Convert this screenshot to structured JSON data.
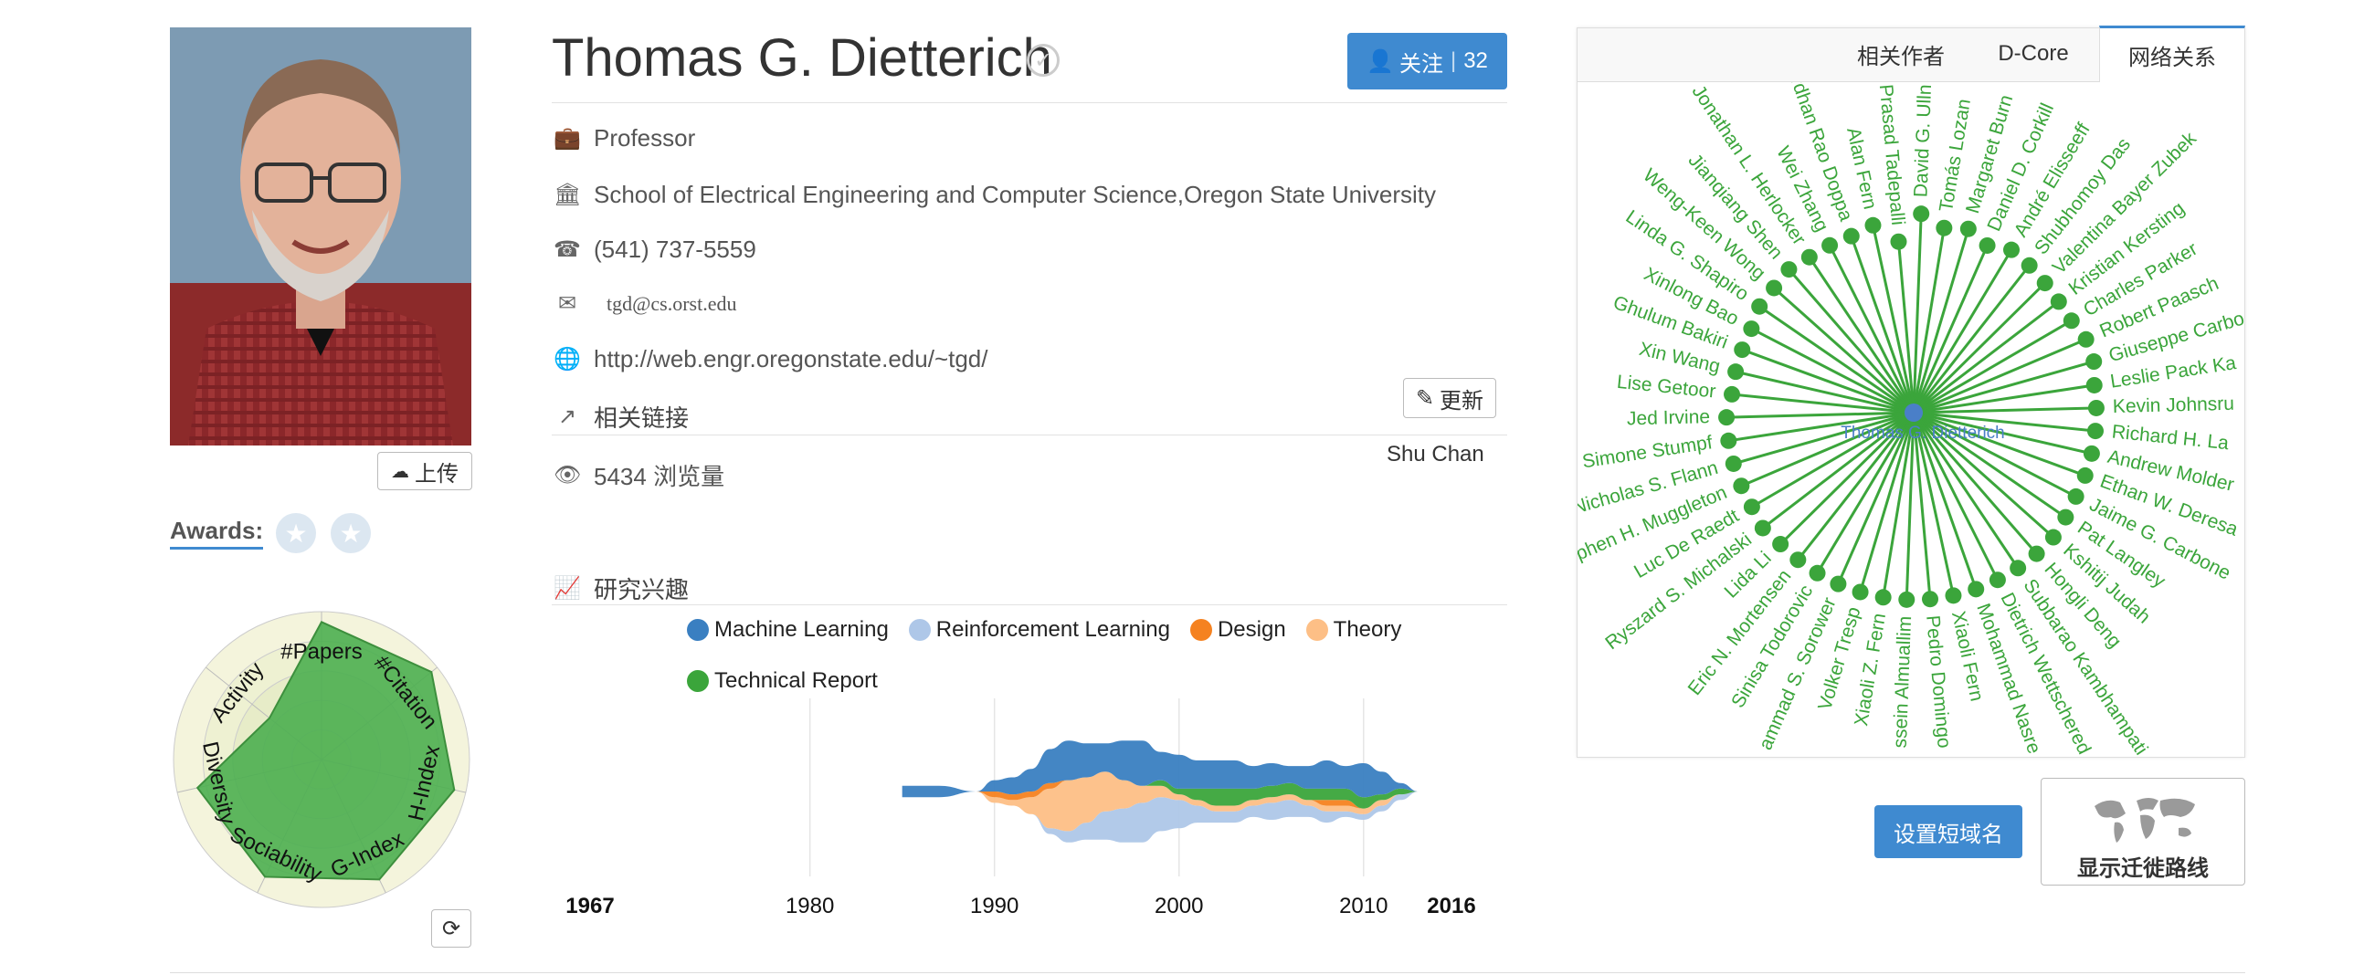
{
  "profile": {
    "name": "Thomas G. Dietterich",
    "follow_label": "关注",
    "follow_count": "32",
    "title": "Professor",
    "affiliation": "School of Electrical Engineering and Computer Science,Oregon State University",
    "phone": "(541) 737-5559",
    "email": "tgd@cs.orst.edu",
    "homepage": "http://web.engr.oregonstate.edu/~tgd/",
    "links_heading": "相关链接",
    "update_label": "更新",
    "links_author": "Shu Chan",
    "views": "5434 浏览量",
    "upload_label": "上传",
    "awards_label": "Awards:"
  },
  "radar": {
    "axes": [
      "#Papers",
      "#Citation",
      "H-Index",
      "G-Index",
      "Sociability",
      "Diversity",
      "Activity"
    ],
    "values": [
      0.93,
      0.95,
      0.92,
      0.9,
      0.88,
      0.86,
      0.45
    ],
    "color": "#4caf50"
  },
  "interests": {
    "heading": "研究兴趣",
    "legend": [
      {
        "name": "Machine Learning",
        "color": "#3a7fc1"
      },
      {
        "name": "Reinforcement Learning",
        "color": "#aec7e8"
      },
      {
        "name": "Design",
        "color": "#f58220"
      },
      {
        "name": "Theory",
        "color": "#fdbf86"
      },
      {
        "name": "Technical Report",
        "color": "#3ba53b"
      }
    ],
    "start_year": "1967",
    "end_year": "2016",
    "ticks": [
      "1980",
      "1990",
      "2000",
      "2010"
    ]
  },
  "chart_data": {
    "type": "area",
    "x": [
      1985,
      1987,
      1989,
      1990,
      1991,
      1992,
      1993,
      1994,
      1995,
      1996,
      1997,
      1998,
      1999,
      2000,
      2001,
      2002,
      2003,
      2004,
      2005,
      2006,
      2007,
      2008,
      2009,
      2010,
      2011,
      2012,
      2013
    ],
    "series": [
      {
        "name": "Machine Learning",
        "values": [
          2,
          2,
          0,
          2,
          3,
          4,
          6,
          7,
          6,
          5,
          7,
          8,
          5,
          6,
          5,
          5,
          5,
          4,
          4,
          3,
          4,
          5,
          4,
          6,
          4,
          1,
          0
        ]
      },
      {
        "name": "Reinforcement Learning",
        "values": [
          0,
          0,
          0,
          0,
          0,
          0,
          1,
          2,
          3,
          5,
          6,
          7,
          6,
          5,
          3,
          2,
          2,
          2,
          3,
          3,
          2,
          2,
          1,
          1,
          1,
          1,
          0
        ]
      },
      {
        "name": "Design",
        "values": [
          0,
          0,
          0,
          1,
          1,
          1,
          1,
          0,
          0,
          0,
          0,
          0,
          0,
          0,
          0,
          0,
          0,
          0,
          0,
          0,
          0,
          1,
          1,
          0,
          0,
          0,
          0
        ]
      },
      {
        "name": "Theory",
        "values": [
          0,
          0,
          0,
          1,
          1,
          3,
          7,
          9,
          8,
          7,
          5,
          3,
          2,
          1,
          1,
          1,
          1,
          1,
          1,
          1,
          1,
          1,
          1,
          1,
          1,
          0,
          0
        ]
      },
      {
        "name": "Technical Report",
        "values": [
          0,
          0,
          0,
          0,
          0,
          0,
          0,
          0,
          0,
          0,
          0,
          0,
          1,
          1,
          2,
          3,
          3,
          2,
          2,
          2,
          2,
          2,
          2,
          2,
          1,
          1,
          0
        ]
      }
    ],
    "xlim": [
      1967,
      2016
    ]
  },
  "network": {
    "tabs": [
      "相关作者",
      "D-Core",
      "网络关系"
    ],
    "active_tab": "网络关系",
    "center": "Thomas G. Dietterich",
    "color": "#3ba53b",
    "center_color": "#4a7fc8",
    "nodes": [
      "David G. Ulln",
      "Tomás Lozan",
      "Margaret Burn",
      "Daniel D. Corkill",
      "André Elisseeff",
      "Shubhomoy Das",
      "Valentina Bayer Zubek",
      "Kristian Kersting",
      "Charles Parker",
      "Robert Paasch",
      "Giuseppe Carbo",
      "Leslie Pack Ka",
      "Kevin Johnsru",
      "Richard H. La",
      "Andrew Molder",
      "Ethan W. Deresa",
      "Jaime G. Carbone",
      "Pat Langley",
      "Kshitij Judah",
      "Hongli Deng",
      "Subbarao Kambhampati",
      "Dietrich Wettschered",
      "Mohammad Nasre",
      "Xiaoli Fern",
      "Pedro Domingo",
      "ssein Almuallim",
      "Xiaoli Z. Fern",
      "Volker Tresp",
      "ammad S. Sorower",
      "Sinisa Todorovic",
      "Eric N. Mortensen",
      "Lida Li",
      "Ryszard S. Michalski",
      "Luc De Raedt",
      "phen H. Muggleton",
      "Nicholas S. Flann",
      "Simone Stumpf",
      "Jed Irvine",
      "Lise Getoor",
      "Xin Wang",
      "Ghulum Bakiri",
      "Xinlong Bao",
      "Linda G. Shapiro",
      "Weng-Keen Wong",
      "Jianqiang Shen",
      "Jonathan L. Herlocker",
      "Wei Zhang",
      "nardhan Rao Doppa",
      "Alan Fern",
      "Prasad Tadepalli"
    ]
  },
  "actions": {
    "short_domain": "设置短域名",
    "migration": "显示迁徙路线"
  }
}
